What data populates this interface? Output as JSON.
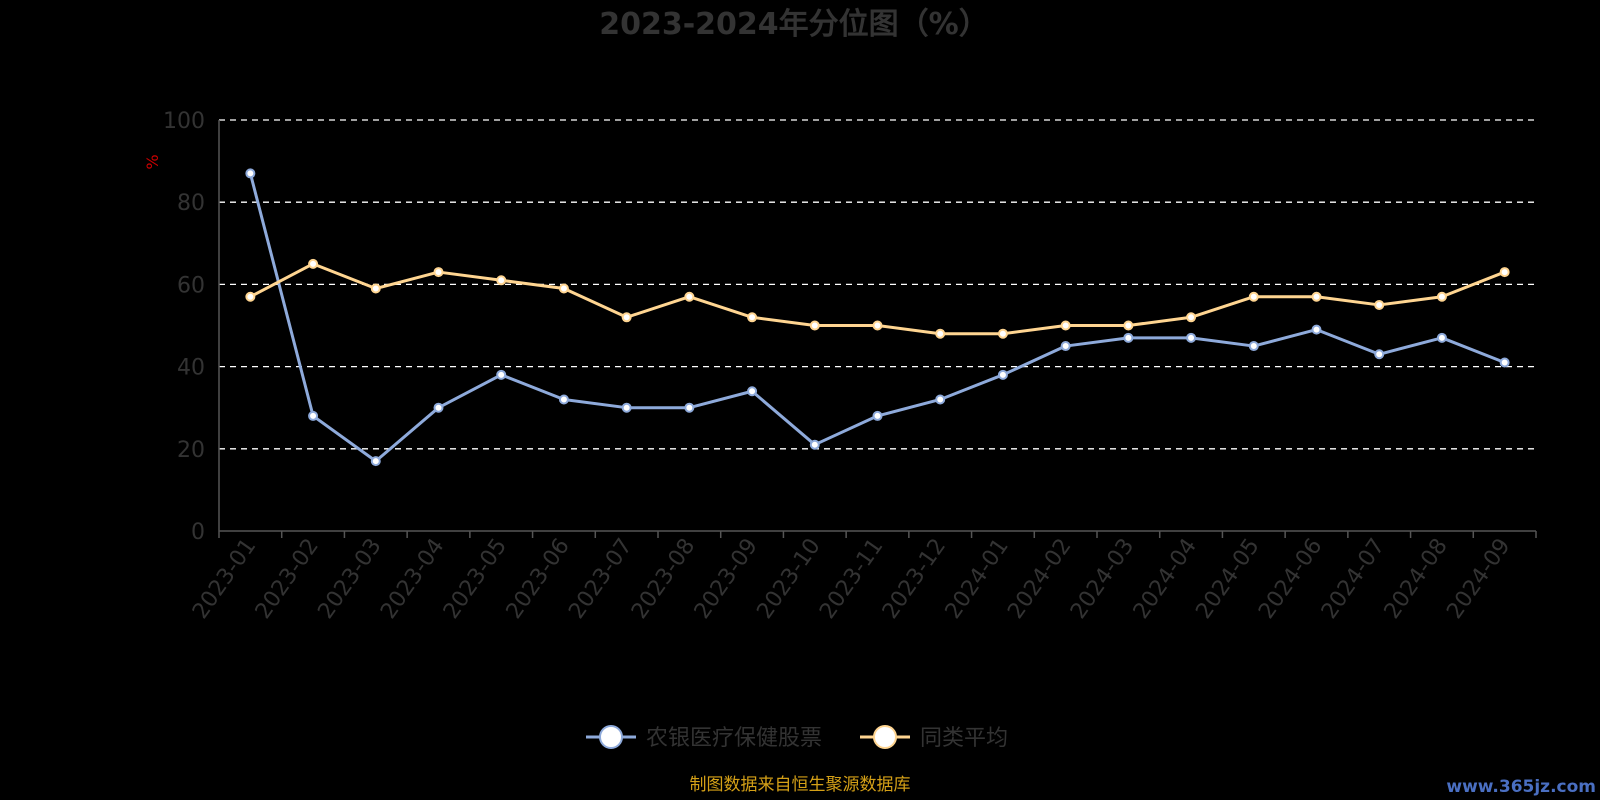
{
  "chart_data": {
    "type": "line",
    "title": "2023-2024年分位图（%）",
    "ylabel": "%",
    "ylim": [
      0,
      100
    ],
    "yticks": [
      "0",
      "20",
      "40",
      "60",
      "80",
      "100"
    ],
    "grid": true,
    "legend_position": "bottom",
    "categories": [
      "2023-01",
      "2023-02",
      "2023-03",
      "2023-04",
      "2023-05",
      "2023-06",
      "2023-07",
      "2023-08",
      "2023-09",
      "2023-10",
      "2023-11",
      "2023-12",
      "2024-01",
      "2024-02",
      "2024-03",
      "2024-04",
      "2024-05",
      "2024-06",
      "2024-07",
      "2024-08",
      "2024-09"
    ],
    "series": [
      {
        "name": "农银医疗保健股票",
        "color": "#8eaadb",
        "values": [
          87,
          28,
          17,
          30,
          38,
          32,
          30,
          30,
          34,
          21,
          28,
          32,
          38,
          45,
          47,
          47,
          45,
          49,
          43,
          47,
          41
        ]
      },
      {
        "name": "同类平均",
        "color": "#ffd591",
        "values": [
          57,
          65,
          59,
          63,
          61,
          59,
          52,
          57,
          52,
          50,
          50,
          48,
          48,
          50,
          50,
          52,
          57,
          57,
          55,
          57,
          63
        ]
      }
    ],
    "source": "制图数据来自恒生聚源数据库",
    "watermark": "www.365jz.com"
  }
}
